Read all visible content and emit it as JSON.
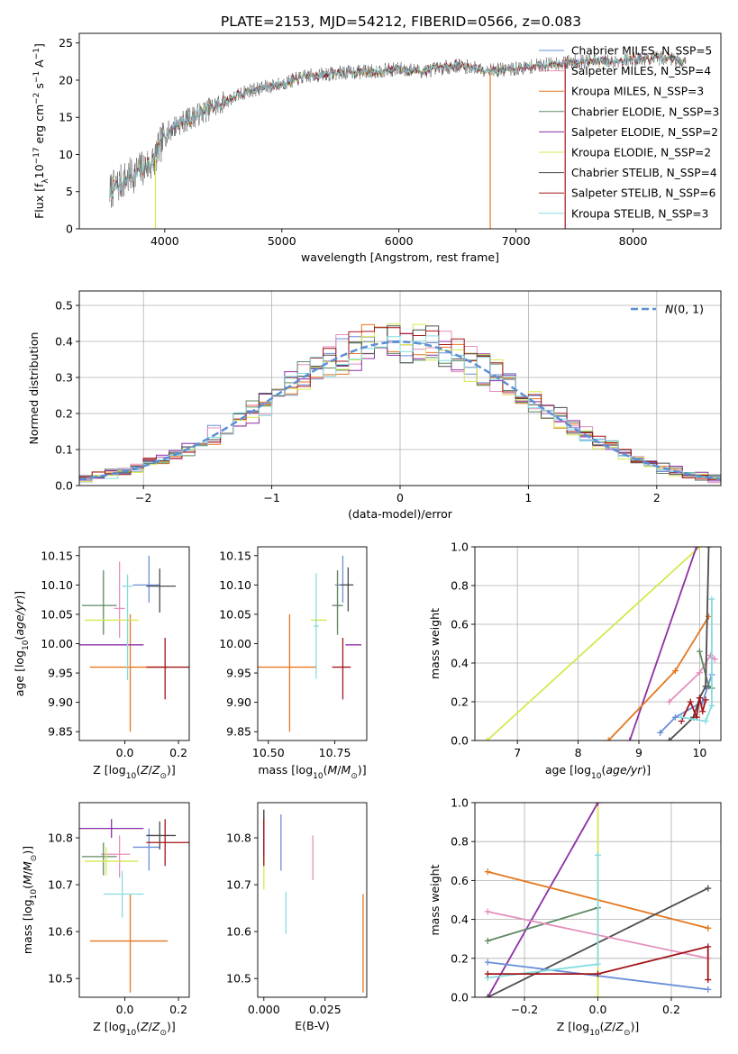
{
  "figure_title": "PLATE=2153, MJD=54212, FIBERID=0566, z=0.083",
  "colors": {
    "chabrier_miles": "#6a8fd8",
    "salpeter_miles": "#e48fbd",
    "kroupa_miles": "#e3771f",
    "chabrier_elodie": "#5f8a63",
    "salpeter_elodie": "#8e2fa6",
    "kroupa_elodie": "#d6e84f",
    "chabrier_stelib": "#4c4c4c",
    "salpeter_stelib": "#a3151b",
    "kroupa_stelib": "#86dbe0",
    "normal_curve": "#5b8fd6"
  },
  "series_names": [
    "Chabrier MILES, N_SSP=5",
    "Salpeter MILES, N_SSP=4",
    "Kroupa MILES, N_SSP=3",
    "Chabrier ELODIE, N_SSP=3",
    "Salpeter ELODIE, N_SSP=2",
    "Kroupa ELODIE, N_SSP=2",
    "Chabrier STELIB, N_SSP=4",
    "Salpeter STELIB, N_SSP=6",
    "Kroupa STELIB, N_SSP=3"
  ],
  "chart_data": [
    {
      "id": "spectrum",
      "type": "line",
      "xlabel": "wavelength [Angstrom, rest frame]",
      "ylabel": "Flux [f_λ 10^-17 erg cm^-2 s^-1 A^-1]",
      "xlim": [
        3270,
        8750
      ],
      "ylim": [
        0,
        26.3
      ],
      "xticks": [
        4000,
        5000,
        6000,
        7000,
        8000
      ],
      "yticks": [
        0,
        5,
        10,
        15,
        20,
        25
      ],
      "legend_position": "upper-right",
      "continuum": {
        "x": [
          3530,
          3650,
          3800,
          3900,
          4000,
          4100,
          4300,
          4500,
          4700,
          5000,
          5200,
          5500,
          5800,
          6000,
          6200,
          6500,
          6800,
          7000,
          7200,
          7500,
          7800,
          8000,
          8300,
          8450
        ],
        "y": [
          5,
          6.5,
          8,
          9,
          12.5,
          14,
          15.5,
          17,
          18.5,
          19.5,
          20.5,
          21,
          21.2,
          21.5,
          21.2,
          22,
          21.3,
          21.5,
          22,
          22.5,
          22.5,
          22.8,
          23,
          22.5
        ]
      },
      "spike_dropouts": [
        {
          "x": 3920,
          "y_min": 0
        },
        {
          "x": 6780,
          "y_min": 0
        },
        {
          "x": 7420,
          "y_min": 0
        }
      ]
    },
    {
      "id": "residuals",
      "type": "histogram",
      "xlabel": "(data-model)/error",
      "ylabel": "Normed distribution",
      "xlim": [
        -2.5,
        2.5
      ],
      "ylim": [
        0,
        0.54
      ],
      "xticks": [
        -2,
        -1,
        0,
        1,
        2
      ],
      "yticks": [
        0.0,
        0.1,
        0.2,
        0.3,
        0.4,
        0.5
      ],
      "grid": true,
      "bin_width": 0.1,
      "reference_curve": {
        "name": "N(0,1)",
        "mu": 0,
        "sigma": 1
      }
    },
    {
      "id": "age_vs_Z",
      "type": "errorbar",
      "xlabel": "Z [log10(Z/Z⊙)]",
      "ylabel": "age [log10(age/yr)]",
      "xlim": [
        -0.17,
        0.24
      ],
      "ylim": [
        9.835,
        10.165
      ],
      "xticks": [
        -0.0,
        0.2
      ],
      "xticklabels": [
        "0.0",
        "0.2"
      ],
      "yticks": [
        9.85,
        9.9,
        9.95,
        10.0,
        10.05,
        10.1,
        10.15
      ],
      "points": [
        {
          "s": 0,
          "x": 0.09,
          "y": 10.1,
          "xerr": [
            0.06,
            0.04
          ],
          "yerr": [
            0.03,
            0.05
          ]
        },
        {
          "s": 1,
          "x": -0.02,
          "y": 10.06,
          "xerr": [
            0.02,
            0.02
          ],
          "yerr": [
            0.05,
            0.08
          ]
        },
        {
          "s": 2,
          "x": 0.02,
          "y": 9.96,
          "xerr": [
            0.15,
            0.14
          ],
          "yerr": [
            0.11,
            0.09
          ]
        },
        {
          "s": 3,
          "x": -0.08,
          "y": 10.065,
          "xerr": [
            0.08,
            0.05
          ],
          "yerr": [
            0.05,
            0.06
          ]
        },
        {
          "s": 4,
          "x": -0.05,
          "y": 9.998,
          "xerr": [
            0.12,
            0.12
          ],
          "yerr": [
            0,
            0
          ]
        },
        {
          "s": 5,
          "x": -0.07,
          "y": 10.04,
          "xerr": [
            0.08,
            0.12
          ],
          "yerr": [
            0,
            0
          ]
        },
        {
          "s": 6,
          "x": 0.13,
          "y": 10.098,
          "xerr": [
            0.05,
            0.06
          ],
          "yerr": [
            0.045,
            0.03
          ]
        },
        {
          "s": 7,
          "x": 0.15,
          "y": 9.96,
          "xerr": [
            0.07,
            0.09
          ],
          "yerr": [
            0.055,
            0.05
          ]
        },
        {
          "s": 8,
          "x": 0.01,
          "y": 10.098,
          "xerr": [
            0.02,
            0.02
          ],
          "yerr": [
            0.16,
            0.02
          ]
        }
      ]
    },
    {
      "id": "age_vs_mass",
      "type": "errorbar",
      "xlabel": "mass [log10(M/M⊙)]",
      "ylabel": "",
      "xlim": [
        10.46,
        10.87
      ],
      "ylim": [
        9.835,
        10.165
      ],
      "xticks": [
        10.5,
        10.75
      ],
      "xticklabels": [
        "10.50",
        "10.75"
      ],
      "yticks": [
        9.85,
        9.9,
        9.95,
        10.0,
        10.05,
        10.1,
        10.15
      ],
      "points": [
        {
          "s": 0,
          "x": 10.78,
          "y": 10.1,
          "xerr": [
            0.03,
            0.03
          ],
          "yerr": [
            0.03,
            0.05
          ]
        },
        {
          "s": 1,
          "x": 10.76,
          "y": 10.065,
          "xerr": [
            0.02,
            0.02
          ],
          "yerr": [
            0.04,
            0.06
          ]
        },
        {
          "s": 2,
          "x": 10.58,
          "y": 9.96,
          "xerr": [
            0.12,
            0.1
          ],
          "yerr": [
            0.11,
            0.09
          ]
        },
        {
          "s": 3,
          "x": 10.76,
          "y": 10.065,
          "xerr": [
            0.02,
            0.02
          ],
          "yerr": [
            0.05,
            0.06
          ]
        },
        {
          "s": 4,
          "x": 10.82,
          "y": 9.998,
          "xerr": [
            0.03,
            0.03
          ],
          "yerr": [
            0,
            0
          ]
        },
        {
          "s": 5,
          "x": 10.69,
          "y": 10.04,
          "xerr": [
            0.03,
            0.03
          ],
          "yerr": [
            0,
            0
          ]
        },
        {
          "s": 6,
          "x": 10.8,
          "y": 10.1,
          "xerr": [
            0.03,
            0.02
          ],
          "yerr": [
            0.045,
            0.03
          ]
        },
        {
          "s": 7,
          "x": 10.78,
          "y": 9.96,
          "xerr": [
            0.04,
            0.03
          ],
          "yerr": [
            0.055,
            0.05
          ]
        },
        {
          "s": 8,
          "x": 10.68,
          "y": 10.03,
          "xerr": [
            0.01,
            0.01
          ],
          "yerr": [
            0.09,
            0.09
          ]
        }
      ]
    },
    {
      "id": "massweight_vs_age",
      "type": "line",
      "xlabel": "age [log10(age/yr)]",
      "ylabel": "mass weight",
      "xlim": [
        6.3,
        10.35
      ],
      "ylim": [
        0,
        1
      ],
      "xticks": [
        7,
        8,
        9,
        10
      ],
      "yticks": [
        0.0,
        0.2,
        0.4,
        0.6,
        0.8,
        1.0
      ],
      "grid": true,
      "series": [
        {
          "s": 5,
          "x": [
            6.5,
            10.0
          ],
          "y": [
            0.0,
            1.0
          ]
        },
        {
          "s": 4,
          "x": [
            8.85,
            9.95
          ],
          "y": [
            0.0,
            1.0
          ]
        },
        {
          "s": 2,
          "x": [
            8.5,
            9.6,
            10.15
          ],
          "y": [
            0.0,
            0.36,
            0.64
          ]
        },
        {
          "s": 0,
          "x": [
            9.35,
            9.6,
            10.05,
            10.2
          ],
          "y": [
            0.04,
            0.12,
            0.2,
            0.34
          ]
        },
        {
          "s": 1,
          "x": [
            9.5,
            10.0,
            10.18,
            10.25
          ],
          "y": [
            0.2,
            0.35,
            0.44,
            0.42
          ]
        },
        {
          "s": 3,
          "x": [
            10.0,
            10.15,
            10.2
          ],
          "y": [
            0.46,
            0.28,
            0.27
          ]
        },
        {
          "s": 6,
          "x": [
            9.5,
            9.9,
            10.0,
            10.1,
            10.15
          ],
          "y": [
            0.0,
            0.12,
            0.22,
            0.28,
            1.0
          ]
        },
        {
          "s": 7,
          "x": [
            9.7,
            9.85,
            9.95,
            10.0,
            10.05,
            10.1
          ],
          "y": [
            0.1,
            0.2,
            0.12,
            0.22,
            0.15,
            0.21
          ]
        },
        {
          "s": 8,
          "x": [
            9.7,
            10.1,
            10.2,
            10.2
          ],
          "y": [
            0.12,
            0.1,
            0.18,
            0.73
          ]
        }
      ]
    },
    {
      "id": "mass_vs_Z",
      "type": "errorbar",
      "xlabel": "Z [log10(Z/Z⊙)]",
      "ylabel": "mass [log10(M/M⊙)]",
      "xlim": [
        -0.17,
        0.24
      ],
      "ylim": [
        10.46,
        10.875
      ],
      "xticks": [
        -0.0,
        0.2
      ],
      "xticklabels": [
        "0.0",
        "0.2"
      ],
      "yticks": [
        10.5,
        10.6,
        10.7,
        10.8
      ],
      "points": [
        {
          "s": 0,
          "x": 0.09,
          "y": 10.78,
          "xerr": [
            0.06,
            0.04
          ],
          "yerr": [
            0.05,
            0.04
          ]
        },
        {
          "s": 1,
          "x": -0.02,
          "y": 10.765,
          "xerr": [
            0.07,
            0.04
          ],
          "yerr": [
            0.05,
            0.04
          ]
        },
        {
          "s": 2,
          "x": 0.02,
          "y": 10.58,
          "xerr": [
            0.15,
            0.14
          ],
          "yerr": [
            0.11,
            0.1
          ]
        },
        {
          "s": 3,
          "x": -0.08,
          "y": 10.76,
          "xerr": [
            0.08,
            0.05
          ],
          "yerr": [
            0.04,
            0.03
          ]
        },
        {
          "s": 4,
          "x": -0.05,
          "y": 10.82,
          "xerr": [
            0.12,
            0.12
          ],
          "yerr": [
            0.02,
            0.02
          ]
        },
        {
          "s": 5,
          "x": -0.07,
          "y": 10.75,
          "xerr": [
            0.08,
            0.12
          ],
          "yerr": [
            0.03,
            0.03
          ]
        },
        {
          "s": 6,
          "x": 0.13,
          "y": 10.805,
          "xerr": [
            0.05,
            0.06
          ],
          "yerr": [
            0.03,
            0.03
          ]
        },
        {
          "s": 7,
          "x": 0.15,
          "y": 10.79,
          "xerr": [
            0.07,
            0.09
          ],
          "yerr": [
            0.05,
            0.05
          ]
        },
        {
          "s": 8,
          "x": -0.01,
          "y": 10.68,
          "xerr": [
            0.07,
            0.08
          ],
          "yerr": [
            0.05,
            0.05
          ]
        }
      ]
    },
    {
      "id": "mass_vs_ebv",
      "type": "errorbar",
      "xlabel": "E(B-V)",
      "ylabel": "",
      "xlim": [
        -0.0025,
        0.042
      ],
      "ylim": [
        10.46,
        10.875
      ],
      "xticks": [
        0.0,
        0.025
      ],
      "xticklabels": [
        "0.000",
        "0.025"
      ],
      "yticks": [
        10.5,
        10.6,
        10.7,
        10.8
      ],
      "points": [
        {
          "s": 0,
          "x": 0.007,
          "y": 10.79,
          "xerr": [
            0,
            0
          ],
          "yerr": [
            0.06,
            0.06
          ]
        },
        {
          "s": 1,
          "x": 0.02,
          "y": 10.765,
          "xerr": [
            0,
            0
          ],
          "yerr": [
            0.055,
            0.04
          ]
        },
        {
          "s": 2,
          "x": 0.0405,
          "y": 10.575,
          "xerr": [
            0,
            0
          ],
          "yerr": [
            0.105,
            0.105
          ]
        },
        {
          "s": 3,
          "x": 0.0,
          "y": 10.79,
          "xerr": [
            0,
            0
          ],
          "yerr": [
            0.05,
            0.05
          ]
        },
        {
          "s": 4,
          "x": 0.0,
          "y": 10.82,
          "xerr": [
            0,
            0
          ],
          "yerr": [
            0.04,
            0.04
          ]
        },
        {
          "s": 5,
          "x": 0.0,
          "y": 10.75,
          "xerr": [
            0,
            0
          ],
          "yerr": [
            0.06,
            0.06
          ]
        },
        {
          "s": 6,
          "x": 0.0,
          "y": 10.8,
          "xerr": [
            0,
            0
          ],
          "yerr": [
            0.04,
            0.06
          ]
        },
        {
          "s": 7,
          "x": 0.0,
          "y": 10.8,
          "xerr": [
            0,
            0
          ],
          "yerr": [
            0.06,
            0.04
          ]
        },
        {
          "s": 8,
          "x": 0.009,
          "y": 10.64,
          "xerr": [
            0,
            0
          ],
          "yerr": [
            0.045,
            0.045
          ]
        }
      ]
    },
    {
      "id": "massweight_vs_Z",
      "type": "line",
      "xlabel": "Z [log10(Z/Z⊙)]",
      "ylabel": "mass weight",
      "xlim": [
        -0.335,
        0.335
      ],
      "ylim": [
        0,
        1
      ],
      "xticks": [
        -0.2,
        0.0,
        0.2
      ],
      "yticks": [
        0.0,
        0.2,
        0.4,
        0.6,
        0.8,
        1.0
      ],
      "grid": true,
      "series": [
        {
          "s": 5,
          "x": [
            0.0,
            0.0
          ],
          "y": [
            0.0,
            1.0
          ]
        },
        {
          "s": 4,
          "x": [
            -0.3,
            0.0
          ],
          "y": [
            0.0,
            1.0
          ]
        },
        {
          "s": 2,
          "x": [
            -0.3,
            0.3
          ],
          "y": [
            0.645,
            0.355
          ]
        },
        {
          "s": 6,
          "x": [
            -0.3,
            0.3
          ],
          "y": [
            0.0,
            0.56
          ]
        },
        {
          "s": 3,
          "x": [
            -0.3,
            0.0
          ],
          "y": [
            0.29,
            0.46
          ]
        },
        {
          "s": 1,
          "x": [
            -0.3,
            0.3
          ],
          "y": [
            0.44,
            0.2
          ]
        },
        {
          "s": 0,
          "x": [
            -0.3,
            0.3
          ],
          "y": [
            0.18,
            0.04
          ]
        },
        {
          "s": 8,
          "x": [
            -0.3,
            0.0,
            0.0
          ],
          "y": [
            0.1,
            0.17,
            0.73
          ]
        },
        {
          "s": 7,
          "x": [
            -0.3,
            0.0,
            0.3,
            0.3
          ],
          "y": [
            0.12,
            0.12,
            0.26,
            0.09
          ]
        }
      ]
    }
  ]
}
